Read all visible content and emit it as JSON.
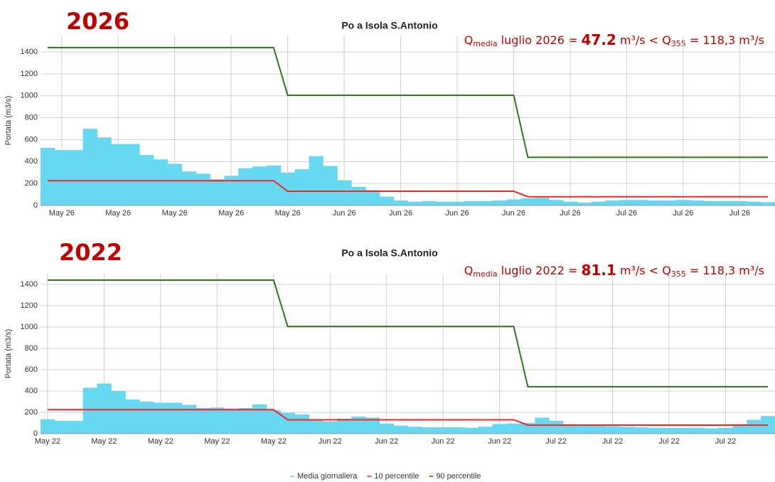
{
  "chart_data": [
    {
      "type": "bar",
      "year": "2026",
      "title": "Po a Isola S.Antonio",
      "y_label": "Portata (m3/s)",
      "annotation": {
        "q": "Q",
        "q_sub": "media",
        "text": " luglio 2026 = ",
        "value": 47.2,
        "unit": " m³/s < Q",
        "q355_sub": "355",
        "tail": " = 118,3 m³/s"
      },
      "categories": [
        null,
        "May 26",
        null,
        null,
        null,
        "May 26",
        null,
        null,
        null,
        "May 26",
        null,
        null,
        null,
        "May 26",
        null,
        null,
        null,
        "May 26",
        null,
        null,
        null,
        "Jun 26",
        null,
        null,
        null,
        "Jun 26",
        null,
        null,
        null,
        "Jun 26",
        null,
        null,
        null,
        "Jun 26",
        null,
        null,
        null,
        "Jul 26",
        null,
        null,
        null,
        "Jul 26",
        null,
        null,
        null,
        "Jul 26",
        null,
        null,
        null,
        "Jul 26",
        null,
        null
      ],
      "ylim": [
        0,
        1550
      ],
      "yticks": [
        0,
        200,
        400,
        600,
        800,
        1000,
        1200,
        1400
      ],
      "grid": true,
      "series": [
        {
          "type": "bar",
          "color": "#66d8ef",
          "values": [
            525,
            505,
            505,
            700,
            620,
            560,
            560,
            460,
            420,
            380,
            310,
            290,
            240,
            270,
            340,
            355,
            365,
            300,
            330,
            450,
            360,
            230,
            170,
            140,
            80,
            45,
            35,
            40,
            35,
            35,
            40,
            40,
            45,
            55,
            65,
            70,
            50,
            35,
            25,
            35,
            45,
            50,
            50,
            45,
            45,
            50,
            45,
            40,
            40,
            40,
            35,
            30
          ]
        },
        {
          "type": "line",
          "color": "#ff2020",
          "values": [
            225,
            225,
            225,
            225,
            225,
            225,
            225,
            225,
            225,
            225,
            225,
            225,
            225,
            225,
            225,
            225,
            225,
            130,
            130,
            130,
            130,
            130,
            130,
            130,
            130,
            130,
            130,
            130,
            130,
            130,
            130,
            130,
            130,
            130,
            80,
            80,
            80,
            80,
            80,
            80,
            80,
            80,
            80,
            80,
            80,
            80,
            80,
            80,
            80,
            80,
            80,
            80
          ]
        },
        {
          "type": "line",
          "color": "#2a7a1a",
          "values": [
            1440,
            1440,
            1440,
            1440,
            1440,
            1440,
            1440,
            1440,
            1440,
            1440,
            1440,
            1440,
            1440,
            1440,
            1440,
            1440,
            1440,
            1005,
            1005,
            1005,
            1005,
            1005,
            1005,
            1005,
            1005,
            1005,
            1005,
            1005,
            1005,
            1005,
            1005,
            1005,
            1005,
            1005,
            440,
            440,
            440,
            440,
            440,
            440,
            440,
            440,
            440,
            440,
            440,
            440,
            440,
            440,
            440,
            440,
            440,
            440
          ]
        }
      ]
    },
    {
      "type": "bar",
      "year": "2022",
      "title": "Po a Isola S.Antonio",
      "y_label": "Portata (m3/s)",
      "annotation": {
        "q": "Q",
        "q_sub": "media",
        "text": " luglio 2022 = ",
        "value": 81.1,
        "unit": " m³/s < Q",
        "q355_sub": "355",
        "tail": " = 118,3 m³/s"
      },
      "categories": [
        "May 22",
        null,
        null,
        null,
        "May 22",
        null,
        null,
        null,
        "May 22",
        null,
        null,
        null,
        "May 22",
        null,
        null,
        null,
        "May 22",
        null,
        null,
        null,
        "Jun 22",
        null,
        null,
        null,
        "Jun 22",
        null,
        null,
        null,
        "Jun 22",
        null,
        null,
        null,
        "Jun 22",
        null,
        null,
        null,
        "Jul 22",
        null,
        null,
        null,
        "Jul 22",
        null,
        null,
        null,
        "Jul 22",
        null,
        null,
        null,
        "Jul 22",
        null,
        null,
        null
      ],
      "ylim": [
        0,
        1500
      ],
      "yticks": [
        0,
        200,
        400,
        600,
        800,
        1000,
        1200,
        1400
      ],
      "grid": true,
      "series": [
        {
          "type": "bar",
          "name": "Media giornaliera",
          "color": "#66d8ef",
          "values": [
            135,
            120,
            120,
            430,
            470,
            400,
            320,
            300,
            290,
            290,
            270,
            240,
            245,
            235,
            240,
            275,
            220,
            195,
            180,
            130,
            115,
            140,
            160,
            150,
            95,
            75,
            65,
            60,
            60,
            60,
            55,
            65,
            90,
            95,
            100,
            150,
            120,
            90,
            80,
            75,
            70,
            65,
            60,
            55,
            55,
            55,
            55,
            50,
            55,
            90,
            130,
            165
          ]
        },
        {
          "type": "line",
          "name": "10 percentile",
          "color": "#ff2020",
          "values": [
            225,
            225,
            225,
            225,
            225,
            225,
            225,
            225,
            225,
            225,
            225,
            225,
            225,
            225,
            225,
            225,
            225,
            130,
            130,
            130,
            130,
            130,
            130,
            130,
            130,
            130,
            130,
            130,
            130,
            130,
            130,
            130,
            130,
            130,
            80,
            80,
            80,
            80,
            80,
            80,
            80,
            80,
            80,
            80,
            80,
            80,
            80,
            80,
            80,
            80,
            80,
            80
          ]
        },
        {
          "type": "line",
          "name": "90 percentile",
          "color": "#2a7a1a",
          "values": [
            1440,
            1440,
            1440,
            1440,
            1440,
            1440,
            1440,
            1440,
            1440,
            1440,
            1440,
            1440,
            1440,
            1440,
            1440,
            1440,
            1440,
            1005,
            1005,
            1005,
            1005,
            1005,
            1005,
            1005,
            1005,
            1005,
            1005,
            1005,
            1005,
            1005,
            1005,
            1005,
            1005,
            1005,
            440,
            440,
            440,
            440,
            440,
            440,
            440,
            440,
            440,
            440,
            440,
            440,
            440,
            440,
            440,
            440,
            440,
            440
          ]
        }
      ]
    }
  ]
}
